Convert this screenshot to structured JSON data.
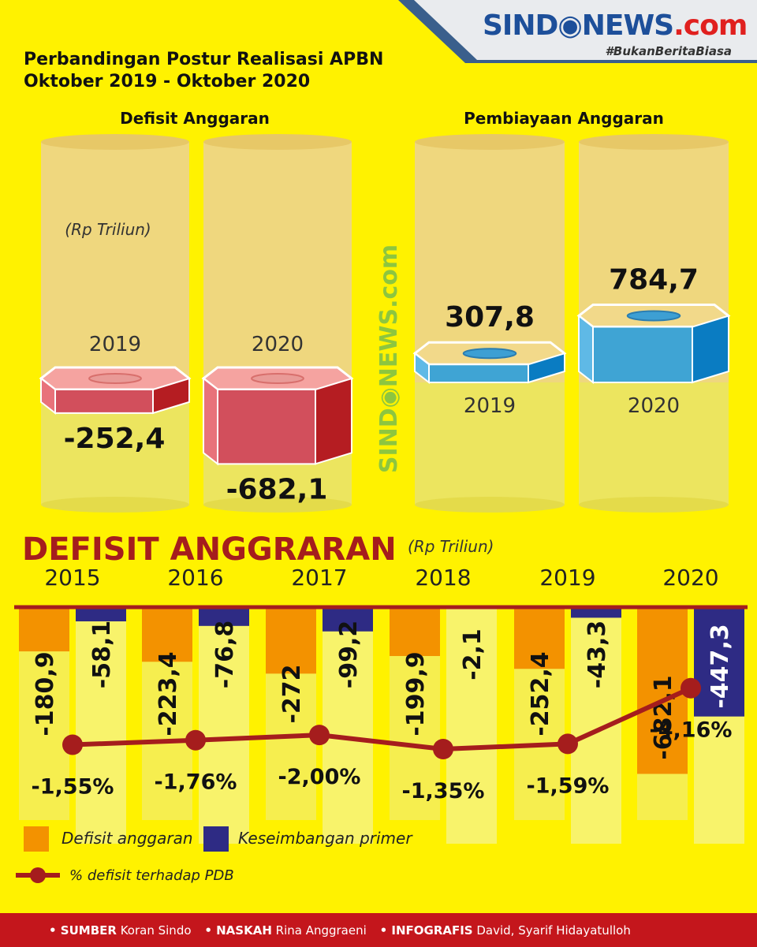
{
  "brand": {
    "name": "SIND◉NEWS",
    "suffix": ".com",
    "tagline": "#BukanBeritaBiasa",
    "watermark": "SIND◉NEWS.com"
  },
  "header": {
    "title_line1": "Perbandingan Postur Realisasi APBN",
    "title_line2": "Oktober 2019 - Oktober 2020"
  },
  "colors": {
    "background": "#fff200",
    "defisit_red": "#d9505c",
    "pembiayaan_blue": "#3fa4d4",
    "defisit_orange": "#f39200",
    "primer_navy": "#2e2b84",
    "line_red": "#a51d1d",
    "title_red": "#a51d1d"
  },
  "chart_data": [
    {
      "type": "bar",
      "title": "Defisit Anggaran",
      "unit_note": "(Rp Triliun)",
      "categories": [
        "2019",
        "2020"
      ],
      "values": [
        -252.4,
        -682.1
      ],
      "value_labels": [
        "-252,4",
        "-682,1"
      ]
    },
    {
      "type": "bar",
      "title": "Pembiayaan Anggaran",
      "categories": [
        "2019",
        "2020"
      ],
      "values": [
        307.8,
        784.7
      ],
      "value_labels": [
        "307,8",
        "784,7"
      ]
    },
    {
      "type": "bar",
      "title": "DEFISIT ANGGRARAN",
      "unit_note": "(Rp Triliun)",
      "categories": [
        "2015",
        "2016",
        "2017",
        "2018",
        "2019",
        "2020"
      ],
      "series": [
        {
          "name": "Defisit anggaran",
          "values": [
            -180.9,
            -223.4,
            -272,
            -199.9,
            -252.4,
            -682.1
          ],
          "labels": [
            "-180,9",
            "-223,4",
            "-272",
            "-199,9",
            "-252,4",
            "-682,1"
          ]
        },
        {
          "name": "Keseimbangan primer",
          "values": [
            -58.1,
            -76.8,
            -99.2,
            -2.1,
            -43.3,
            -447.3
          ],
          "labels": [
            "-58,1",
            "-76,8",
            "-99,2",
            "-2,1",
            "-43,3",
            "-447,3"
          ]
        },
        {
          "name": "% defisit terhadap PDB",
          "type": "line",
          "values": [
            -1.55,
            -1.76,
            -2.0,
            -1.35,
            -1.59,
            -4.16
          ],
          "labels": [
            "-1,55%",
            "-1,76%",
            "-2,00%",
            "-1,35%",
            "-1,59%",
            "-4,16%"
          ]
        }
      ],
      "legend": "bottom-left"
    }
  ],
  "footer": {
    "source_label": "• SUMBER",
    "source_value": " Koran Sindo",
    "writer_label": "• NASKAH",
    "writer_value": " Rina Anggraeni",
    "graphic_label": "• INFOGRAFIS",
    "graphic_value": " David, Syarif Hidayatulloh"
  }
}
